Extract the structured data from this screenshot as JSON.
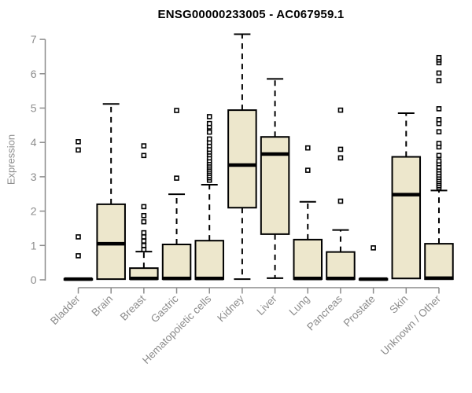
{
  "chart_data": {
    "type": "boxplot",
    "title": "ENSG00000233005 - AC067959.1",
    "ylabel": "Expression",
    "xlabel": "",
    "ylim": [
      0,
      7
    ],
    "yticks": [
      0,
      1,
      2,
      3,
      4,
      5,
      6,
      7
    ],
    "grid": false,
    "legend": "none",
    "colors": {
      "box_fill": "#ede7cc",
      "box_stroke": "#000000",
      "axis": "#8c8c8c",
      "title": "#000000"
    },
    "categories": [
      "Bladder",
      "Brain",
      "Breast",
      "Gastric",
      "Hematopoietic cells",
      "Kidney",
      "Liver",
      "Lung",
      "Pancreas",
      "Prostate",
      "Skin",
      "Unknown / Other"
    ],
    "boxes": [
      {
        "label": "Bladder",
        "low": 0,
        "q1": 0,
        "median": 0.02,
        "q3": 0.03,
        "high": 0.03,
        "outliers": [
          0.7,
          1.25,
          3.78,
          4.02
        ]
      },
      {
        "label": "Brain",
        "low": 0,
        "q1": 0.02,
        "median": 1.05,
        "q3": 2.2,
        "high": 5.12,
        "outliers": []
      },
      {
        "label": "Breast",
        "low": 0,
        "q1": 0.02,
        "median": 0.04,
        "q3": 0.34,
        "high": 0.82,
        "outliers": [
          0.88,
          1.0,
          1.13,
          1.25,
          1.37,
          1.69,
          1.87,
          2.13,
          3.62,
          3.9
        ]
      },
      {
        "label": "Gastric",
        "low": 0,
        "q1": 0.02,
        "median": 0.04,
        "q3": 1.03,
        "high": 2.49,
        "outliers": [
          2.96,
          4.93
        ]
      },
      {
        "label": "Hematopoietic cells",
        "low": 0,
        "q1": 0.02,
        "median": 0.04,
        "q3": 1.14,
        "high": 2.77,
        "outliers": [
          2.9,
          2.97,
          3.03,
          3.1,
          3.16,
          3.22,
          3.28,
          3.34,
          3.4,
          3.47,
          3.55,
          3.64,
          3.72,
          3.8,
          3.9,
          4.0,
          4.1,
          4.3,
          4.45,
          4.55,
          4.75
        ]
      },
      {
        "label": "Kidney",
        "low": 0.02,
        "q1": 2.1,
        "median": 3.34,
        "q3": 4.94,
        "high": 7.15,
        "outliers": []
      },
      {
        "label": "Liver",
        "low": 0.05,
        "q1": 1.33,
        "median": 3.66,
        "q3": 4.16,
        "high": 5.85,
        "outliers": []
      },
      {
        "label": "Lung",
        "low": 0,
        "q1": 0.02,
        "median": 0.04,
        "q3": 1.17,
        "high": 2.27,
        "outliers": [
          3.19,
          3.84
        ]
      },
      {
        "label": "Pancreas",
        "low": 0,
        "q1": 0.02,
        "median": 0.04,
        "q3": 0.81,
        "high": 1.45,
        "outliers": [
          2.29,
          3.55,
          3.8,
          4.94
        ]
      },
      {
        "label": "Prostate",
        "low": 0,
        "q1": 0,
        "median": 0.02,
        "q3": 0.03,
        "high": 0.03,
        "outliers": [
          0.93
        ]
      },
      {
        "label": "Skin",
        "low": 0.02,
        "q1": 0.04,
        "median": 2.48,
        "q3": 3.58,
        "high": 4.85,
        "outliers": []
      },
      {
        "label": "Unknown / Other",
        "low": 0,
        "q1": 0.02,
        "median": 0.05,
        "q3": 1.05,
        "high": 2.6,
        "outliers": [
          2.68,
          2.74,
          2.8,
          2.86,
          2.92,
          2.98,
          3.05,
          3.12,
          3.2,
          3.28,
          3.38,
          3.46,
          3.62,
          3.87,
          3.97,
          4.31,
          4.55,
          4.66,
          4.98,
          5.8,
          6.02,
          6.32,
          6.4,
          6.47
        ]
      }
    ]
  }
}
